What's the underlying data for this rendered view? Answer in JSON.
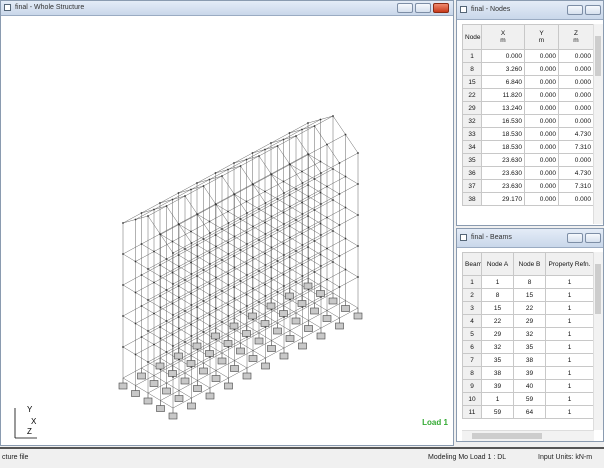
{
  "structure": {
    "title": "final - Whole Structure",
    "load_label": "Load 1",
    "axes": [
      "Y",
      "X",
      "Z"
    ]
  },
  "nodes": {
    "title": "final - Nodes",
    "columns": [
      {
        "name": "Node"
      },
      {
        "name": "X",
        "unit": "m"
      },
      {
        "name": "Y",
        "unit": "m"
      },
      {
        "name": "Z",
        "unit": "m"
      }
    ],
    "rows": [
      [
        "1",
        "0.000",
        "0.000",
        "0.000"
      ],
      [
        "8",
        "3.260",
        "0.000",
        "0.000"
      ],
      [
        "15",
        "6.840",
        "0.000",
        "0.000"
      ],
      [
        "22",
        "11.820",
        "0.000",
        "0.000"
      ],
      [
        "29",
        "13.240",
        "0.000",
        "0.000"
      ],
      [
        "32",
        "16.530",
        "0.000",
        "0.000"
      ],
      [
        "33",
        "18.530",
        "0.000",
        "4.730"
      ],
      [
        "34",
        "18.530",
        "0.000",
        "7.310"
      ],
      [
        "35",
        "23.630",
        "0.000",
        "0.000"
      ],
      [
        "36",
        "23.630",
        "0.000",
        "4.730"
      ],
      [
        "37",
        "23.630",
        "0.000",
        "7.310"
      ],
      [
        "38",
        "29.170",
        "0.000",
        "0.000"
      ]
    ]
  },
  "beams": {
    "title": "final - Beams",
    "columns": [
      {
        "name": "Beam"
      },
      {
        "name": "Node A"
      },
      {
        "name": "Node B"
      },
      {
        "name": "Property Refn."
      }
    ],
    "rows": [
      [
        "1",
        "1",
        "8",
        "1"
      ],
      [
        "2",
        "8",
        "15",
        "1"
      ],
      [
        "3",
        "15",
        "22",
        "1"
      ],
      [
        "4",
        "22",
        "29",
        "1"
      ],
      [
        "5",
        "29",
        "32",
        "1"
      ],
      [
        "6",
        "32",
        "35",
        "1"
      ],
      [
        "7",
        "35",
        "38",
        "1"
      ],
      [
        "8",
        "38",
        "39",
        "1"
      ],
      [
        "9",
        "39",
        "40",
        "1"
      ],
      [
        "10",
        "1",
        "59",
        "1"
      ],
      [
        "11",
        "59",
        "64",
        "1"
      ]
    ]
  },
  "status": {
    "left": "cture file",
    "mode": "Modeling Mo",
    "load": "Load 1 : DL",
    "units": "Input Units: kN-m"
  }
}
